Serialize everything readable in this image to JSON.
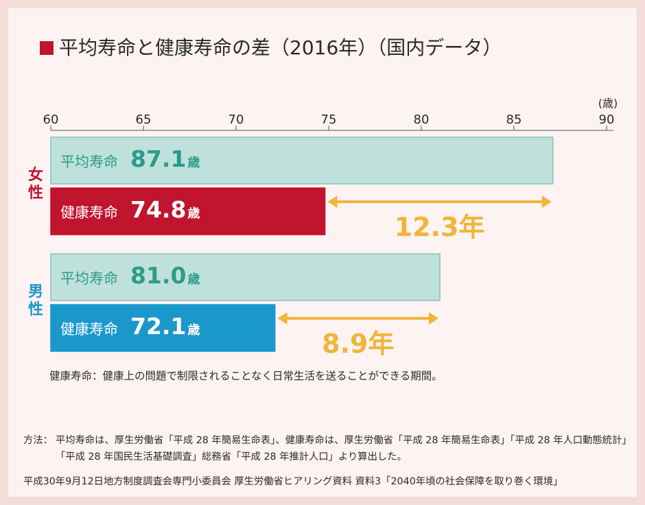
{
  "header": {
    "title": "平均寿命と健康寿命の差（2016年）（国内データ）"
  },
  "chart_data": {
    "type": "bar",
    "orientation": "horizontal",
    "unit_label": "(歳)",
    "xlim": [
      60,
      90
    ],
    "ticks": [
      "60",
      "65",
      "70",
      "75",
      "80",
      "85",
      "90"
    ],
    "groups": [
      {
        "name": "女性",
        "color": "#c0142f",
        "bars": [
          {
            "label": "平均寿命",
            "value": 87.1,
            "value_text": "87.1",
            "unit": "歳",
            "fill": "#bfe1db",
            "stroke": "#84c2b6",
            "text_color": "#2e9a8a"
          },
          {
            "label": "健康寿命",
            "value": 74.8,
            "value_text": "74.8",
            "unit": "歳",
            "fill": "#c0142f",
            "stroke": "#c0142f",
            "text_color": "#ffffff"
          }
        ],
        "gap": 12.3,
        "gap_text": "12.3年"
      },
      {
        "name": "男性",
        "color": "#1a98cc",
        "bars": [
          {
            "label": "平均寿命",
            "value": 81.0,
            "value_text": "81.0",
            "unit": "歳",
            "fill": "#bfe1db",
            "stroke": "#84c2b6",
            "text_color": "#2e9a8a"
          },
          {
            "label": "健康寿命",
            "value": 72.1,
            "value_text": "72.1",
            "unit": "歳",
            "fill": "#1a98cc",
            "stroke": "#1a98cc",
            "text_color": "#ffffff"
          }
        ],
        "gap": 8.9,
        "gap_text": "8.9年"
      }
    ],
    "arrow_color": "#f2b43a"
  },
  "note": "健康寿命：健康上の問題で制限されることなく日常生活を送ることができる期間。",
  "method": {
    "label": "方法：",
    "text": "平均寿命は、厚生労働省「平成 28 年簡易生命表」、健康寿命は、厚生労働省「平成 28 年簡易生命表」「平成 28 年人口動態統計」「平成 28 年国民生活基礎調査」総務省「平成 28 年推計人口」より算出した。"
  },
  "source": "平成30年9月12日地方制度調査会専門小委員会 厚生労働省ヒアリング資料 資料3「2040年頃の社会保障を取り巻く環境」"
}
